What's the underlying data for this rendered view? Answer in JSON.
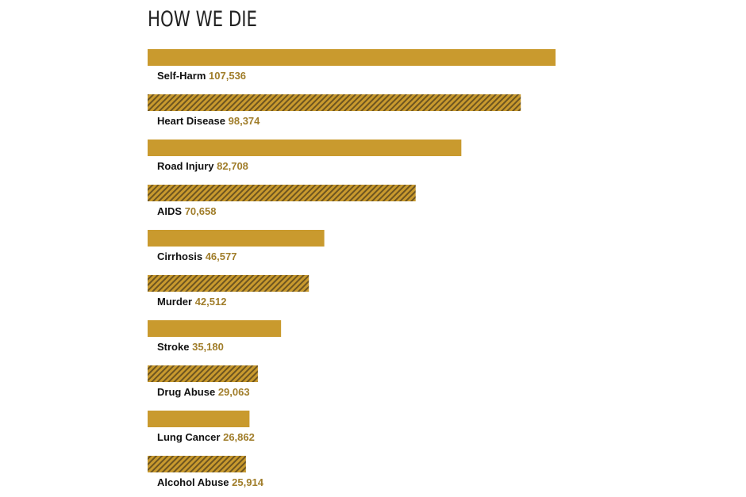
{
  "chart_data": {
    "type": "bar",
    "title": "HOW WE DIE",
    "categories": [
      "Self-Harm",
      "Heart Disease",
      "Road Injury",
      "AIDS",
      "Cirrhosis",
      "Murder",
      "Stroke",
      "Drug Abuse",
      "Lung Cancer",
      "Alcohol Abuse"
    ],
    "values": [
      107536,
      98374,
      82708,
      70658,
      46577,
      42512,
      35180,
      29063,
      26862,
      25914
    ],
    "value_labels": [
      "107,536",
      "98,374",
      "82,708",
      "70,658",
      "46,577",
      "42,512",
      "35,180",
      "29,063",
      "26,862",
      "25,914"
    ],
    "color": "#c99a2e"
  }
}
